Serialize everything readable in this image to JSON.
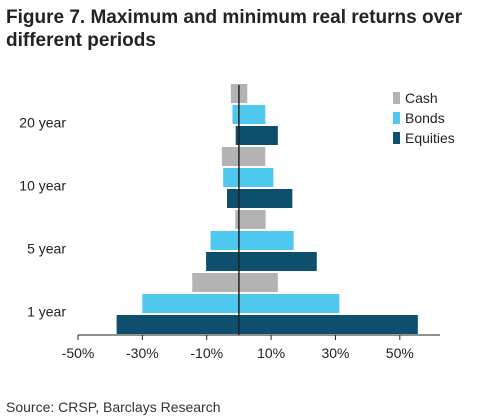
{
  "chart_data": {
    "type": "bar",
    "orientation": "horizontal",
    "title": "Figure 7. Maximum and minimum real returns over different periods",
    "source": "Source: CRSP, Barclays Research",
    "categories": [
      "1 year",
      "5 year",
      "10 year",
      "20 year"
    ],
    "xlim": [
      -50,
      60
    ],
    "x_ticks": [
      -50,
      -30,
      -10,
      10,
      30,
      50
    ],
    "x_tick_labels": [
      "-50%",
      "-30%",
      "-10%",
      "10%",
      "30%",
      "50%"
    ],
    "legend_position": "top-right",
    "series": [
      {
        "name": "Cash",
        "color": "#b3b3b3",
        "min": [
          -14.5,
          -1.1,
          -5.3,
          -2.5
        ],
        "max": [
          12.1,
          8.3,
          8.2,
          2.6
        ]
      },
      {
        "name": "Bonds",
        "color": "#4fc8f0",
        "min": [
          -30.0,
          -8.8,
          -4.9,
          -2.0
        ],
        "max": [
          31.2,
          17.0,
          10.7,
          8.2
        ]
      },
      {
        "name": "Equities",
        "color": "#0e4f6e",
        "min": [
          -38.0,
          -10.2,
          -3.7,
          -1.0
        ],
        "max": [
          55.6,
          24.2,
          16.6,
          12.1
        ]
      }
    ]
  }
}
